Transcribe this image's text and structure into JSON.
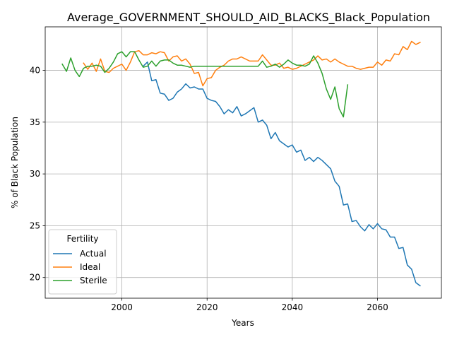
{
  "chart_data": {
    "type": "line",
    "title": "Average_GOVERNMENT_SHOULD_AID_BLACKS_Black_Population",
    "xlabel": "Years",
    "ylabel": "% of Black Population",
    "xlim": [
      1982,
      2075
    ],
    "ylim": [
      18,
      44.2
    ],
    "x_ticks": [
      2000,
      2020,
      2040,
      2060
    ],
    "y_ticks": [
      20,
      25,
      30,
      35,
      40
    ],
    "grid": true,
    "legend": {
      "title": "Fertility",
      "placement": "lower-left"
    },
    "series": [
      {
        "name": "Actual",
        "color": "#1f77b4",
        "points": [
          [
            2005,
            40.4
          ],
          [
            2006,
            40.8
          ],
          [
            2007,
            39.0
          ],
          [
            2008,
            39.1
          ],
          [
            2009,
            37.8
          ],
          [
            2010,
            37.7
          ],
          [
            2011,
            37.1
          ],
          [
            2012,
            37.3
          ],
          [
            2013,
            37.9
          ],
          [
            2014,
            38.2
          ],
          [
            2015,
            38.7
          ],
          [
            2016,
            38.3
          ],
          [
            2017,
            38.4
          ],
          [
            2018,
            38.2
          ],
          [
            2019,
            38.2
          ],
          [
            2020,
            37.3
          ],
          [
            2021,
            37.1
          ],
          [
            2022,
            37.0
          ],
          [
            2023,
            36.5
          ],
          [
            2024,
            35.8
          ],
          [
            2025,
            36.2
          ],
          [
            2026,
            35.9
          ],
          [
            2027,
            36.5
          ],
          [
            2028,
            35.6
          ],
          [
            2029,
            35.8
          ],
          [
            2030,
            36.1
          ],
          [
            2031,
            36.4
          ],
          [
            2032,
            35.0
          ],
          [
            2033,
            35.2
          ],
          [
            2034,
            34.7
          ],
          [
            2035,
            33.4
          ],
          [
            2036,
            34.0
          ],
          [
            2037,
            33.2
          ],
          [
            2038,
            32.9
          ],
          [
            2039,
            32.6
          ],
          [
            2040,
            32.8
          ],
          [
            2041,
            32.1
          ],
          [
            2042,
            32.3
          ],
          [
            2043,
            31.3
          ],
          [
            2044,
            31.6
          ],
          [
            2045,
            31.2
          ],
          [
            2046,
            31.6
          ],
          [
            2047,
            31.3
          ],
          [
            2048,
            30.9
          ],
          [
            2049,
            30.5
          ],
          [
            2050,
            29.3
          ],
          [
            2051,
            28.8
          ],
          [
            2052,
            27.0
          ],
          [
            2053,
            27.1
          ],
          [
            2054,
            25.4
          ],
          [
            2055,
            25.5
          ],
          [
            2056,
            24.9
          ],
          [
            2057,
            24.5
          ],
          [
            2058,
            25.1
          ],
          [
            2059,
            24.7
          ],
          [
            2060,
            25.2
          ],
          [
            2061,
            24.7
          ],
          [
            2062,
            24.6
          ],
          [
            2063,
            23.9
          ],
          [
            2064,
            23.9
          ],
          [
            2065,
            22.8
          ],
          [
            2066,
            22.9
          ],
          [
            2067,
            21.2
          ],
          [
            2068,
            20.8
          ],
          [
            2069,
            19.5
          ],
          [
            2070,
            19.2
          ]
        ]
      },
      {
        "name": "Ideal",
        "color": "#ff7f0e",
        "points": [
          [
            1991,
            40.7
          ],
          [
            1992,
            40.1
          ],
          [
            1993,
            40.7
          ],
          [
            1994,
            39.9
          ],
          [
            1995,
            41.1
          ],
          [
            1996,
            39.9
          ],
          [
            1997,
            39.8
          ],
          [
            1998,
            40.2
          ],
          [
            1999,
            40.4
          ],
          [
            2000,
            40.6
          ],
          [
            2001,
            40.0
          ],
          [
            2002,
            40.8
          ],
          [
            2003,
            41.8
          ],
          [
            2004,
            41.9
          ],
          [
            2005,
            41.5
          ],
          [
            2006,
            41.5
          ],
          [
            2007,
            41.7
          ],
          [
            2008,
            41.6
          ],
          [
            2009,
            41.8
          ],
          [
            2010,
            41.7
          ],
          [
            2011,
            40.9
          ],
          [
            2012,
            41.3
          ],
          [
            2013,
            41.4
          ],
          [
            2014,
            40.9
          ],
          [
            2015,
            41.1
          ],
          [
            2016,
            40.6
          ],
          [
            2017,
            39.7
          ],
          [
            2018,
            39.8
          ],
          [
            2019,
            38.5
          ],
          [
            2020,
            39.2
          ],
          [
            2021,
            39.3
          ],
          [
            2022,
            40.0
          ],
          [
            2023,
            40.3
          ],
          [
            2024,
            40.5
          ],
          [
            2025,
            40.9
          ],
          [
            2026,
            41.1
          ],
          [
            2027,
            41.1
          ],
          [
            2028,
            41.3
          ],
          [
            2029,
            41.1
          ],
          [
            2030,
            40.9
          ],
          [
            2031,
            40.9
          ],
          [
            2032,
            40.9
          ],
          [
            2033,
            41.5
          ],
          [
            2034,
            41.0
          ],
          [
            2035,
            40.5
          ],
          [
            2036,
            40.5
          ],
          [
            2037,
            40.7
          ],
          [
            2038,
            40.2
          ],
          [
            2039,
            40.3
          ],
          [
            2040,
            40.1
          ],
          [
            2041,
            40.2
          ],
          [
            2042,
            40.4
          ],
          [
            2043,
            40.6
          ],
          [
            2044,
            40.8
          ],
          [
            2045,
            41.0
          ],
          [
            2046,
            41.4
          ],
          [
            2047,
            41.0
          ],
          [
            2048,
            41.1
          ],
          [
            2049,
            40.8
          ],
          [
            2050,
            41.1
          ],
          [
            2051,
            40.8
          ],
          [
            2052,
            40.6
          ],
          [
            2053,
            40.4
          ],
          [
            2054,
            40.4
          ],
          [
            2055,
            40.2
          ],
          [
            2056,
            40.1
          ],
          [
            2057,
            40.2
          ],
          [
            2058,
            40.3
          ],
          [
            2059,
            40.3
          ],
          [
            2060,
            40.8
          ],
          [
            2061,
            40.5
          ],
          [
            2062,
            41.0
          ],
          [
            2063,
            40.9
          ],
          [
            2064,
            41.6
          ],
          [
            2065,
            41.5
          ],
          [
            2066,
            42.3
          ],
          [
            2067,
            42.0
          ],
          [
            2068,
            42.8
          ],
          [
            2069,
            42.5
          ],
          [
            2070,
            42.7
          ]
        ]
      },
      {
        "name": "Sterile",
        "color": "#2ca02c",
        "points": [
          [
            1986,
            40.6
          ],
          [
            1987,
            39.9
          ],
          [
            1988,
            41.2
          ],
          [
            1989,
            40.0
          ],
          [
            1990,
            39.4
          ],
          [
            1991,
            40.2
          ],
          [
            1992,
            40.4
          ],
          [
            1993,
            40.4
          ],
          [
            1994,
            40.5
          ],
          [
            1995,
            40.4
          ],
          [
            1996,
            39.8
          ],
          [
            1997,
            40.2
          ],
          [
            1998,
            40.8
          ],
          [
            1999,
            41.6
          ],
          [
            2000,
            41.8
          ],
          [
            2001,
            41.3
          ],
          [
            2002,
            41.8
          ],
          [
            2003,
            41.8
          ],
          [
            2004,
            41.0
          ],
          [
            2005,
            40.3
          ],
          [
            2006,
            40.4
          ],
          [
            2007,
            40.9
          ],
          [
            2008,
            40.4
          ],
          [
            2009,
            40.9
          ],
          [
            2010,
            41.0
          ],
          [
            2011,
            41.0
          ],
          [
            2012,
            40.7
          ],
          [
            2013,
            40.5
          ],
          [
            2014,
            40.5
          ],
          [
            2015,
            40.4
          ],
          [
            2016,
            40.3
          ],
          [
            2017,
            40.4
          ],
          [
            2018,
            40.4
          ],
          [
            2019,
            40.4
          ],
          [
            2020,
            40.4
          ],
          [
            2021,
            40.4
          ],
          [
            2022,
            40.4
          ],
          [
            2023,
            40.4
          ],
          [
            2024,
            40.4
          ],
          [
            2025,
            40.4
          ],
          [
            2026,
            40.4
          ],
          [
            2027,
            40.4
          ],
          [
            2028,
            40.4
          ],
          [
            2029,
            40.4
          ],
          [
            2030,
            40.4
          ],
          [
            2031,
            40.4
          ],
          [
            2032,
            40.4
          ],
          [
            2033,
            40.9
          ],
          [
            2034,
            40.3
          ],
          [
            2035,
            40.4
          ],
          [
            2036,
            40.6
          ],
          [
            2037,
            40.3
          ],
          [
            2038,
            40.6
          ],
          [
            2039,
            41.0
          ],
          [
            2040,
            40.7
          ],
          [
            2041,
            40.5
          ],
          [
            2042,
            40.5
          ],
          [
            2043,
            40.4
          ],
          [
            2044,
            40.6
          ],
          [
            2045,
            41.4
          ],
          [
            2046,
            40.7
          ],
          [
            2047,
            39.7
          ],
          [
            2048,
            38.2
          ],
          [
            2049,
            37.2
          ],
          [
            2050,
            38.4
          ],
          [
            2051,
            36.3
          ],
          [
            2052,
            35.5
          ],
          [
            2053,
            38.6
          ]
        ]
      }
    ]
  }
}
